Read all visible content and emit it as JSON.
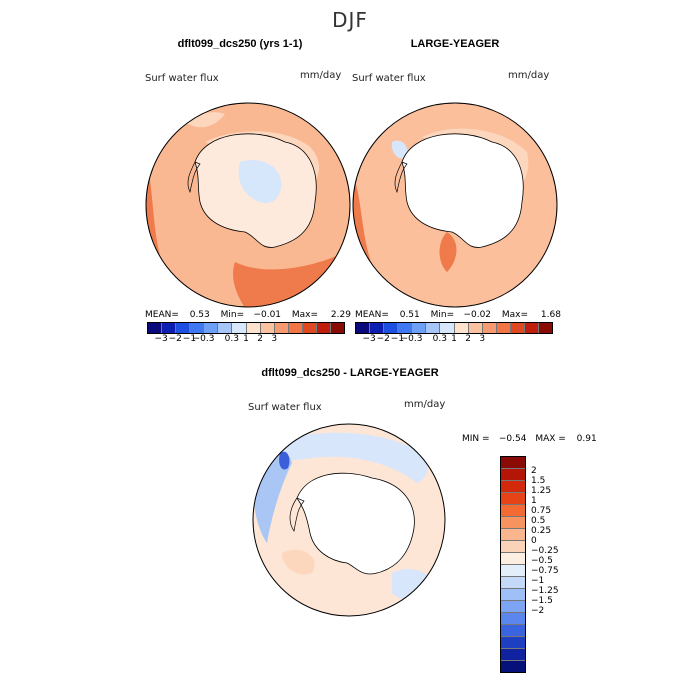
{
  "header": {
    "season": "DJF"
  },
  "panels": [
    {
      "title": "dflt099_dcs250 (yrs 1-1)",
      "variable_label": "Surf water flux",
      "units": "mm/day",
      "stats": {
        "mean_label": "MEAN=",
        "mean": "0.53",
        "min_label": "Min=",
        "min": "−0.01",
        "max_label": "Max=",
        "max": "2.29"
      }
    },
    {
      "title": "LARGE-YEAGER",
      "variable_label": "Surf water flux",
      "units": "mm/day",
      "stats": {
        "mean_label": "MEAN=",
        "mean": "0.51",
        "min_label": "Min=",
        "min": "−0.02",
        "max_label": "Max=",
        "max": "1.68"
      }
    }
  ],
  "diff_panel": {
    "title": "dflt099_dcs250 - LARGE-YEAGER",
    "variable_label": "Surf water flux",
    "units": "mm/day",
    "stats": {
      "min_label": "MIN =",
      "min": "−0.54",
      "max_label": "MAX =",
      "max": "0.91"
    }
  },
  "colorbar_horizontal": {
    "colors": [
      "#0a0a7a",
      "#0c1fb0",
      "#1f4fe0",
      "#3f78f0",
      "#6c9ff5",
      "#a6c6fa",
      "#d8e8fb",
      "#fde2cc",
      "#fbc2a2",
      "#f79a72",
      "#f27447",
      "#e0481f",
      "#c01e0c",
      "#8a0a05"
    ],
    "labels": [
      "−3",
      "−2",
      "−1",
      "−0.3",
      "0.3",
      "1",
      "2",
      "3"
    ],
    "label_positions": [
      1,
      2,
      3,
      4,
      6,
      7,
      8,
      9
    ]
  },
  "colorbar_vertical": {
    "colors": [
      "#8a0a05",
      "#b31507",
      "#d2280c",
      "#e64416",
      "#f46a33",
      "#f7935f",
      "#f9b58d",
      "#fbd3b8",
      "#fdeee2",
      "#e3eefb",
      "#c4d8f8",
      "#9fc0f6",
      "#7ca4f3",
      "#5a86ee",
      "#3a63e0",
      "#1f3fc2",
      "#0f23a0",
      "#06117a"
    ],
    "labels": [
      "2",
      "1.5",
      "1.25",
      "1",
      "0.75",
      "0.5",
      "0.25",
      "0",
      "−0.25",
      "−0.5",
      "−0.75",
      "−1",
      "−1.25",
      "−1.5",
      "−2"
    ]
  },
  "map_fills": {
    "ocean_panel1": "#f9b891",
    "ocean_panel2": "#fbbf9c",
    "ocean_diff": "#fde6d6",
    "land_panel1": "#fdeadd",
    "land_inner_panel1": "#d6e6fb",
    "land_white": "#ffffff",
    "strong_warm": "#ef7a4b",
    "light_warm": "#fcd6bd",
    "light_blue": "#d7e6fb",
    "mid_blue": "#a9c6f5",
    "dark_blue": "#3b5fd8"
  }
}
